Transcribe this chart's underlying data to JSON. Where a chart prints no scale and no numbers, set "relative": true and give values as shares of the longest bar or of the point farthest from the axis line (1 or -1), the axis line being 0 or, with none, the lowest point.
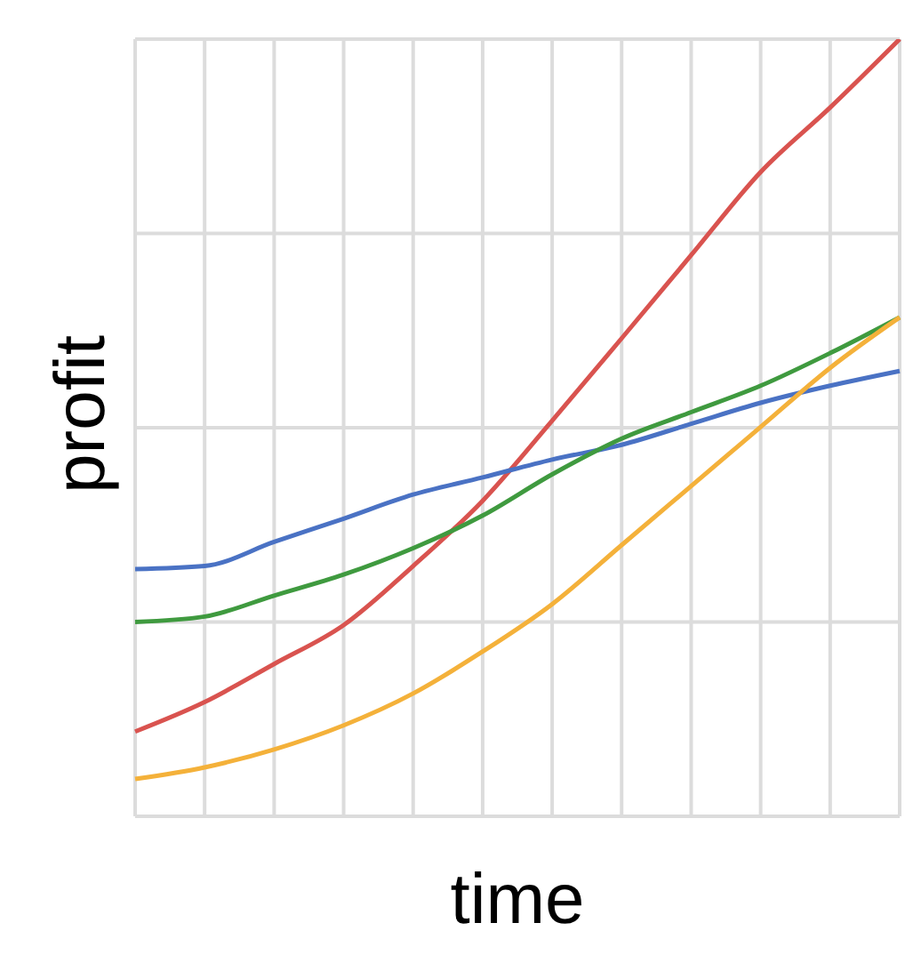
{
  "chart_data": {
    "type": "line",
    "xlabel": "time",
    "ylabel": "profit",
    "relative": true,
    "grid": true,
    "legend": false,
    "marker": "none",
    "line_style": "solid",
    "categories": [
      null,
      null,
      null,
      null,
      null,
      null,
      null,
      null,
      null,
      null,
      null,
      null
    ],
    "series": [
      {
        "color": "#d9534f",
        "values": [
          0.109,
          0.147,
          0.196,
          0.246,
          0.322,
          0.406,
          0.509,
          0.615,
          0.722,
          0.829,
          0.912,
          1
        ]
      },
      {
        "color": "#4a72c4",
        "values": [
          0.318,
          0.322,
          0.353,
          0.383,
          0.414,
          0.436,
          0.459,
          0.478,
          0.505,
          0.532,
          0.554,
          0.573
        ]
      },
      {
        "color": "#3f9a3f",
        "values": [
          0.25,
          0.257,
          0.284,
          0.311,
          0.345,
          0.387,
          0.44,
          0.486,
          0.52,
          0.554,
          0.596,
          0.642
        ]
      },
      {
        "color": "#f4b13a",
        "values": [
          0.048,
          0.063,
          0.086,
          0.117,
          0.158,
          0.212,
          0.273,
          0.349,
          0.425,
          0.501,
          0.577,
          0.642
        ]
      }
    ]
  }
}
